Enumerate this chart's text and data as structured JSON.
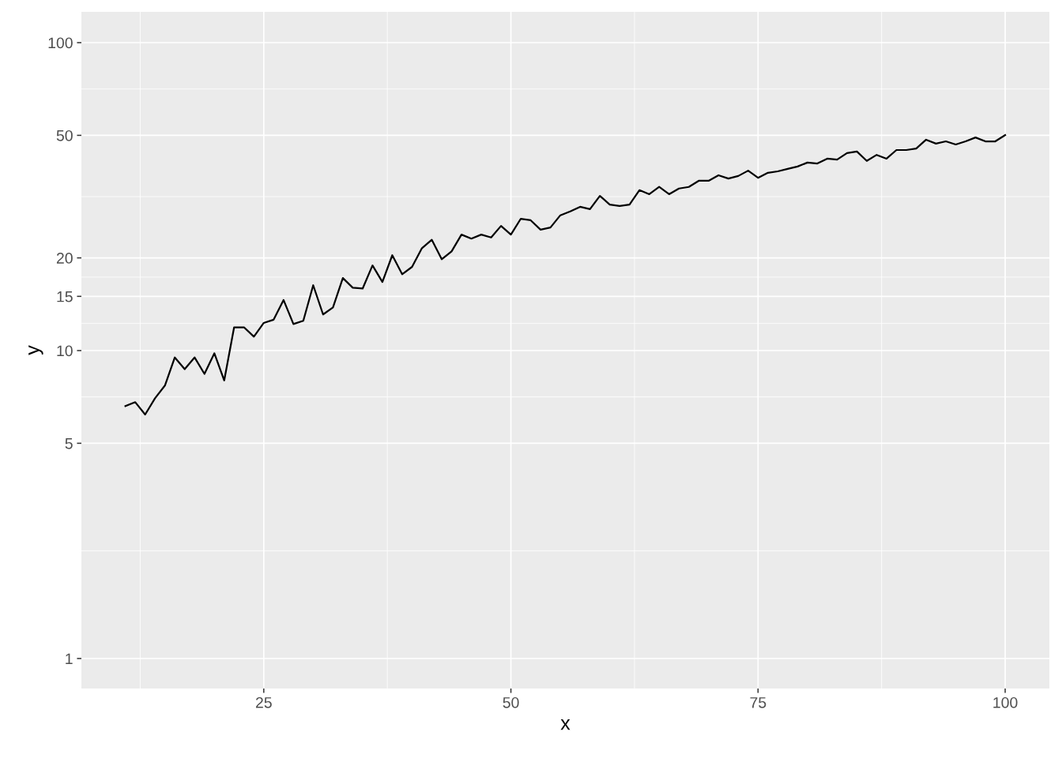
{
  "chart_data": {
    "type": "line",
    "xlabel": "x",
    "ylabel": "y",
    "log": "y",
    "grid": true,
    "xlim": [
      6.55,
      104.47
    ],
    "ylim": [
      0.799,
      125.9
    ],
    "xticks": [
      25,
      50,
      75,
      100
    ],
    "yticks": [
      1,
      5,
      10,
      15,
      20,
      50,
      100
    ],
    "x": [
      11,
      12,
      13,
      14,
      15,
      16,
      17,
      18,
      19,
      20,
      21,
      22,
      23,
      24,
      25,
      26,
      27,
      28,
      29,
      30,
      31,
      32,
      33,
      34,
      35,
      36,
      37,
      38,
      39,
      40,
      41,
      42,
      43,
      44,
      45,
      46,
      47,
      48,
      49,
      50,
      51,
      52,
      53,
      54,
      55,
      56,
      57,
      58,
      59,
      60,
      61,
      62,
      63,
      64,
      65,
      66,
      67,
      68,
      69,
      70,
      71,
      72,
      73,
      74,
      75,
      76,
      77,
      78,
      79,
      80,
      81,
      82,
      83,
      84,
      85,
      86,
      87,
      88,
      89,
      90,
      91,
      92,
      93,
      94,
      95,
      96,
      97,
      98,
      99,
      100
    ],
    "series": [
      {
        "color": "#000000",
        "values": [
          6.6,
          6.8,
          6.2,
          7.0,
          7.7,
          9.5,
          8.7,
          9.5,
          8.4,
          9.8,
          8.0,
          11.9,
          11.9,
          11.1,
          12.3,
          12.6,
          14.6,
          12.2,
          12.5,
          16.3,
          13.1,
          13.8,
          17.2,
          16.0,
          15.9,
          18.9,
          16.7,
          20.4,
          17.7,
          18.7,
          21.5,
          22.9,
          19.8,
          21.0,
          23.8,
          23.1,
          23.8,
          23.3,
          25.4,
          23.8,
          26.8,
          26.5,
          24.7,
          25.1,
          27.5,
          28.3,
          29.3,
          28.8,
          31.8,
          29.8,
          29.5,
          29.8,
          33.2,
          32.2,
          34.0,
          32.2,
          33.6,
          34.0,
          35.6,
          35.6,
          37.1,
          36.2,
          36.9,
          38.4,
          36.4,
          37.8,
          38.2,
          38.9,
          39.6,
          40.8,
          40.5,
          42.0,
          41.7,
          43.8,
          44.3,
          41.3,
          43.2,
          42.0,
          44.8,
          44.8,
          45.3,
          48.4,
          47.0,
          47.8,
          46.7,
          47.8,
          49.2,
          47.8,
          47.8,
          50.1
        ]
      }
    ]
  }
}
